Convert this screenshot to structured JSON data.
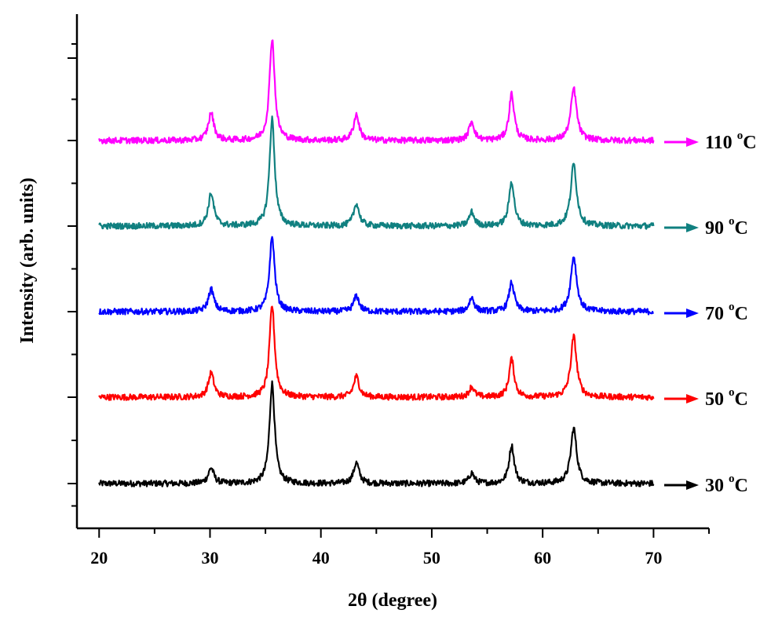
{
  "chart_data": {
    "type": "line",
    "title": "",
    "xlabel": "2θ (degree)",
    "ylabel": "Intensity (arb. units)",
    "xlim": [
      18,
      75
    ],
    "x_ticks": [
      "20",
      "30",
      "40",
      "50",
      "60",
      "70"
    ],
    "x_tick_values": [
      20,
      30,
      40,
      50,
      60,
      70
    ],
    "x_range": [
      20,
      70
    ],
    "y_tick_labels_shown": false,
    "stacked_offset": true,
    "peaks_2theta": [
      30.1,
      35.6,
      43.2,
      53.6,
      57.2,
      62.8
    ],
    "series": [
      {
        "name": "30 oC",
        "label_main": "30 ",
        "label_sup": "o",
        "label_unit": "C",
        "color": "#000000",
        "peak_heights": [
          0.09,
          0.58,
          0.12,
          0.06,
          0.22,
          0.32
        ]
      },
      {
        "name": "50 oC",
        "label_main": "50 ",
        "label_sup": "o",
        "label_unit": "C",
        "color": "#ff0000",
        "peak_heights": [
          0.14,
          0.53,
          0.12,
          0.06,
          0.22,
          0.35
        ]
      },
      {
        "name": "70 oC",
        "label_main": "70 ",
        "label_sup": "o",
        "label_unit": "C",
        "color": "#0000ff",
        "peak_heights": [
          0.13,
          0.43,
          0.09,
          0.08,
          0.17,
          0.32
        ]
      },
      {
        "name": "90 oC",
        "label_main": "90 ",
        "label_sup": "o",
        "label_unit": "C",
        "color": "#108080",
        "peak_heights": [
          0.19,
          0.62,
          0.13,
          0.08,
          0.26,
          0.36
        ]
      },
      {
        "name": "110 oC",
        "label_main": "110 ",
        "label_sup": "o",
        "label_unit": "C",
        "color": "#ff00ff",
        "peak_heights": [
          0.16,
          0.59,
          0.15,
          0.11,
          0.27,
          0.3
        ]
      }
    ]
  }
}
